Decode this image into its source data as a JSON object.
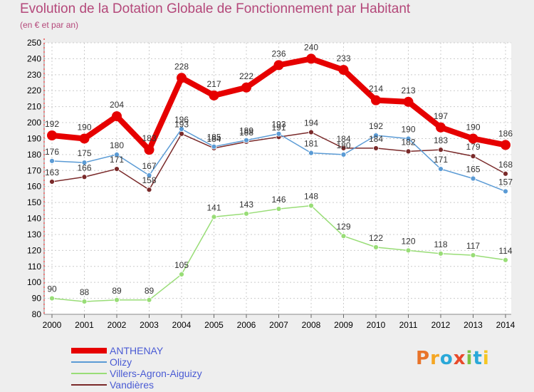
{
  "title": "Evolution de la Dotation Globale de Fonctionnement par Habitant",
  "subtitle": "(en € et par an)",
  "logo": {
    "text": "Proxiti",
    "letters": [
      "P",
      "r",
      "o",
      "x",
      "i",
      "t",
      "i"
    ],
    "colors": [
      "#e8742a",
      "#f5a623",
      "#2aa8d8",
      "#e84a2a",
      "#7cc242",
      "#2aa8d8",
      "#f5c623"
    ]
  },
  "chart_data": {
    "type": "line",
    "x": [
      "2000",
      "2001",
      "2002",
      "2003",
      "2004",
      "2005",
      "2006",
      "2007",
      "2008",
      "2009",
      "2010",
      "2011",
      "2012",
      "2013",
      "2014"
    ],
    "ylim": [
      80,
      250
    ],
    "yticks": [
      "80",
      "90",
      "100",
      "110",
      "120",
      "130",
      "140",
      "150",
      "160",
      "170",
      "180",
      "190",
      "200",
      "210",
      "220",
      "230",
      "240",
      "250"
    ],
    "grid": true,
    "legend_position": "bottom-left",
    "series": [
      {
        "name": "ANTHENAY",
        "color": "#e60000",
        "values": [
          192,
          190,
          204,
          183,
          228,
          217,
          222,
          236,
          240,
          233,
          214,
          213,
          197,
          190,
          186
        ]
      },
      {
        "name": "Olizy",
        "color": "#5b9bd5",
        "values": [
          176,
          175,
          180,
          167,
          196,
          185,
          189,
          193,
          181,
          180,
          192,
          190,
          171,
          165,
          157
        ]
      },
      {
        "name": "Villers-Agron-Aiguizy",
        "color": "#99dd77",
        "values": [
          90,
          88,
          89,
          89,
          105,
          141,
          143,
          146,
          148,
          129,
          122,
          120,
          118,
          117,
          114
        ]
      },
      {
        "name": "Vandières",
        "color": "#7a2a2a",
        "values": [
          163,
          166,
          171,
          158,
          193,
          184,
          188,
          191,
          194,
          184,
          184,
          182,
          183,
          179,
          168
        ]
      }
    ],
    "value_labels": [
      [
        "192",
        "190",
        "204",
        "183",
        "228",
        "217",
        "222",
        "236",
        "240",
        "233",
        "214",
        "213",
        "197",
        "190",
        "186"
      ],
      [
        "176",
        "175",
        "180",
        "167",
        "196",
        "185",
        "189",
        "193",
        "181",
        "180",
        "192",
        "190",
        "171",
        "165",
        "157"
      ],
      [
        "90",
        "88",
        "89",
        "89",
        "105",
        "141",
        "143",
        "146",
        "148",
        "129",
        "122",
        "120",
        "118",
        "117",
        "114"
      ],
      [
        "163",
        "166",
        "171",
        "158",
        "193",
        "184",
        "188",
        "191",
        "194",
        "184",
        "184",
        "182",
        "183",
        "179",
        "168"
      ]
    ]
  }
}
